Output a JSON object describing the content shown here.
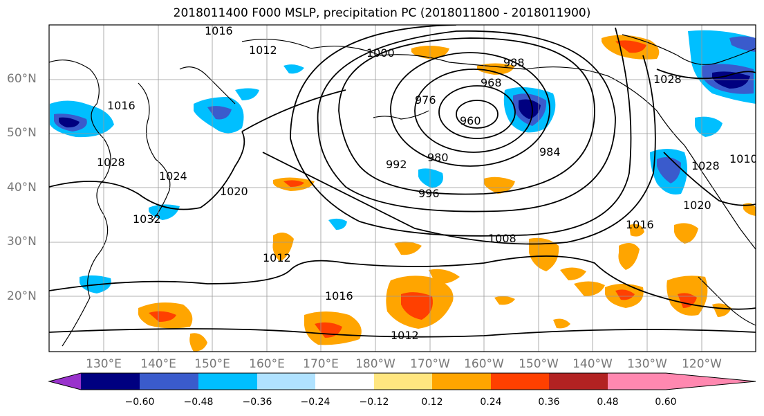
{
  "title": "2018011400 F000 MSLP, precipitation PC (2018011800 - 2018011900)",
  "lat_labels": [
    "60°N",
    "50°N",
    "40°N",
    "30°N",
    "20°N"
  ],
  "lon_labels": [
    "130°E",
    "140°E",
    "150°E",
    "160°E",
    "170°E",
    "180°W",
    "170°W",
    "160°W",
    "150°W",
    "140°W",
    "130°W",
    "120°W"
  ],
  "isobar_labels": [
    "1016",
    "1012",
    "1000",
    "988",
    "976",
    "968",
    "960",
    "992",
    "996",
    "980",
    "984",
    "1020",
    "1008",
    "1016",
    "1012",
    "1016",
    "1012",
    "1028",
    "1028",
    "1020",
    "1016",
    "1010",
    "1024",
    "1028",
    "1032"
  ],
  "colorbar": {
    "ticks": [
      "−0.60",
      "−0.48",
      "−0.36",
      "−0.24",
      "−0.12",
      "0.12",
      "0.24",
      "0.36",
      "0.48",
      "0.60"
    ],
    "colors": [
      "#9932cc",
      "#000080",
      "#3a5bcc",
      "#00bfff",
      "#b0e2ff",
      "#ffffff",
      "#ffe680",
      "#ffa500",
      "#ff4000",
      "#b22222",
      "#ff88b0"
    ]
  }
}
